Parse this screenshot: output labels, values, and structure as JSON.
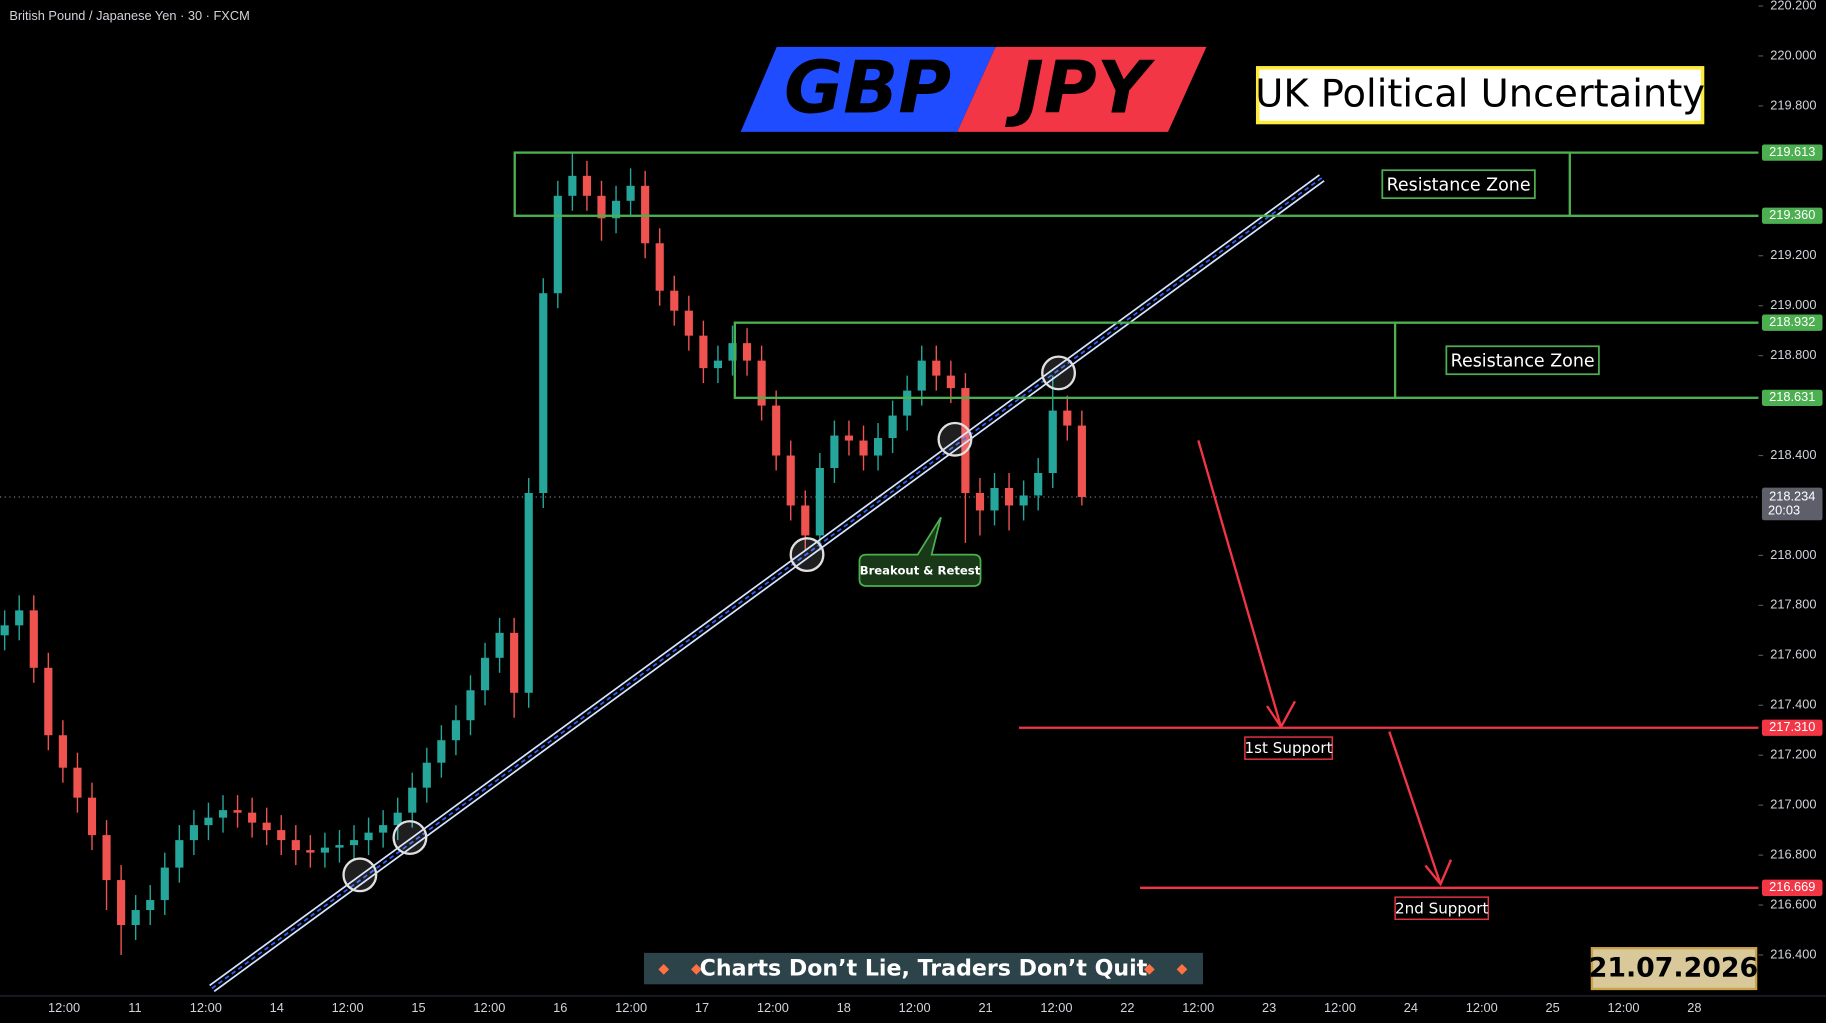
{
  "chart_data": {
    "type": "candlestick",
    "symbol": "British Pound / Japanese Yen · 30 · FXCM",
    "title_left": "GBP",
    "title_right": "JPY",
    "subtitle": "UK Political Uncertainty",
    "categories": [
      "12:00",
      "11",
      "12:00",
      "14",
      "12:00",
      "15",
      "12:00",
      "16",
      "12:00",
      "17",
      "12:00",
      "18",
      "12:00",
      "21",
      "12:00",
      "22",
      "12:00",
      "23",
      "12:00",
      "24",
      "12:00",
      "25",
      "12:00",
      "28"
    ],
    "open": [
      217.68,
      217.72,
      217.78,
      217.55,
      217.28,
      217.15,
      217.03,
      216.88,
      216.7,
      216.52,
      216.58,
      216.62,
      216.75,
      216.86,
      216.92,
      216.95,
      216.98,
      216.97,
      216.93,
      216.9,
      216.86,
      216.82,
      216.81,
      216.83,
      216.84,
      216.86,
      216.89,
      216.92,
      216.97,
      217.07,
      217.17,
      217.26,
      217.34,
      217.46,
      217.59,
      217.69,
      217.45,
      218.25,
      219.05,
      219.44,
      219.52,
      219.44,
      219.35,
      219.42,
      219.48,
      219.25,
      219.06,
      218.98,
      218.88,
      218.75,
      218.78,
      218.85,
      218.78,
      218.6,
      218.4,
      218.2,
      218.08,
      218.35,
      218.48,
      218.46,
      218.4,
      218.47,
      218.56,
      218.66,
      218.78,
      218.72,
      218.67,
      218.25,
      218.18,
      218.27,
      218.2,
      218.24,
      218.33,
      218.58,
      218.52
    ],
    "high": [
      217.78,
      217.84,
      217.84,
      217.61,
      217.34,
      217.21,
      217.09,
      216.94,
      216.76,
      216.64,
      216.68,
      216.81,
      216.92,
      216.98,
      217.01,
      217.04,
      217.04,
      217.03,
      216.99,
      216.96,
      216.92,
      216.88,
      216.89,
      216.9,
      216.92,
      216.95,
      216.98,
      217.03,
      217.13,
      217.23,
      217.32,
      217.4,
      217.52,
      217.65,
      217.75,
      217.75,
      218.31,
      219.11,
      219.5,
      219.61,
      219.58,
      219.5,
      219.48,
      219.55,
      219.54,
      219.31,
      219.12,
      219.04,
      218.94,
      218.84,
      218.92,
      218.91,
      218.84,
      218.66,
      218.46,
      218.26,
      218.41,
      218.54,
      218.54,
      218.52,
      218.53,
      218.62,
      218.72,
      218.84,
      218.84,
      218.78,
      218.73,
      218.31,
      218.33,
      218.33,
      218.3,
      218.39,
      218.72,
      218.64,
      218.58
    ],
    "low": [
      217.62,
      217.66,
      217.49,
      217.22,
      217.09,
      216.97,
      216.82,
      216.58,
      216.4,
      216.46,
      216.52,
      216.56,
      216.69,
      216.8,
      216.86,
      216.89,
      216.91,
      216.87,
      216.84,
      216.8,
      216.76,
      216.75,
      216.75,
      216.77,
      216.78,
      216.8,
      216.83,
      216.86,
      216.91,
      217.01,
      217.11,
      217.2,
      217.28,
      217.4,
      217.53,
      217.35,
      217.39,
      218.19,
      218.99,
      219.38,
      219.38,
      219.26,
      219.29,
      219.36,
      219.19,
      219.0,
      218.92,
      218.82,
      218.69,
      218.69,
      218.72,
      218.72,
      218.54,
      218.34,
      218.14,
      218.02,
      218.02,
      218.29,
      218.4,
      218.34,
      218.34,
      218.41,
      218.5,
      218.6,
      218.66,
      218.61,
      218.05,
      218.08,
      218.12,
      218.1,
      218.14,
      218.18,
      218.27,
      218.46,
      218.2
    ],
    "close": [
      217.72,
      217.78,
      217.55,
      217.28,
      217.15,
      217.03,
      216.88,
      216.7,
      216.52,
      216.58,
      216.62,
      216.75,
      216.86,
      216.92,
      216.95,
      216.98,
      216.97,
      216.93,
      216.9,
      216.86,
      216.82,
      216.81,
      216.83,
      216.84,
      216.86,
      216.89,
      216.92,
      216.97,
      217.07,
      217.17,
      217.26,
      217.34,
      217.46,
      217.59,
      217.69,
      217.45,
      218.25,
      219.05,
      219.44,
      219.52,
      219.44,
      219.35,
      219.42,
      219.48,
      219.25,
      219.06,
      218.98,
      218.88,
      218.75,
      218.78,
      218.85,
      218.78,
      218.6,
      218.4,
      218.2,
      218.08,
      218.35,
      218.48,
      218.46,
      218.4,
      218.47,
      218.56,
      218.66,
      218.78,
      218.72,
      218.67,
      218.25,
      218.18,
      218.27,
      218.2,
      218.24,
      218.33,
      218.58,
      218.52,
      218.234
    ],
    "up_color": "#26a69a",
    "down_color": "#ef5350",
    "ylim": [
      216.236,
      220.223
    ],
    "yticks": [
      {
        "value": 220.2,
        "label": "220.200"
      },
      {
        "value": 220.0,
        "label": "220.000"
      },
      {
        "value": 219.8,
        "label": "219.800"
      },
      {
        "value": 219.2,
        "label": "219.200"
      },
      {
        "value": 219.0,
        "label": "219.000"
      },
      {
        "value": 218.8,
        "label": "218.800"
      },
      {
        "value": 218.4,
        "label": "218.400"
      },
      {
        "value": 218.0,
        "label": "218.000"
      },
      {
        "value": 217.8,
        "label": "217.800"
      },
      {
        "value": 217.6,
        "label": "217.600"
      },
      {
        "value": 217.4,
        "label": "217.400"
      },
      {
        "value": 217.2,
        "label": "217.200"
      },
      {
        "value": 217.0,
        "label": "217.000"
      },
      {
        "value": 216.8,
        "label": "216.800"
      },
      {
        "value": 216.6,
        "label": "216.600"
      },
      {
        "value": 216.4,
        "label": "216.400"
      }
    ],
    "resistance_zones": [
      {
        "label": "Resistance Zone",
        "color": "#4caf50",
        "high": {
          "value": 219.613,
          "label": "219.613"
        },
        "low": {
          "value": 219.36,
          "label": "219.360"
        }
      },
      {
        "label": "Resistance Zone",
        "color": "#4caf50",
        "high": {
          "value": 218.932,
          "label": "218.932"
        },
        "low": {
          "value": 218.631,
          "label": "218.631"
        }
      }
    ],
    "supports": [
      {
        "label": "1st Support",
        "color": "#f23645",
        "level": {
          "value": 217.31,
          "label": "217.310"
        }
      },
      {
        "label": "2nd Support",
        "color": "#f23645",
        "level": {
          "value": 216.669,
          "label": "216.669"
        }
      }
    ],
    "last_price": {
      "value": 218.234,
      "label": "218.234",
      "countdown": "20:03"
    },
    "annotation": "Breakout & Retest",
    "footer": "Charts Don’t Lie, Traders Don’t Quit",
    "date": "21.07.2026"
  }
}
